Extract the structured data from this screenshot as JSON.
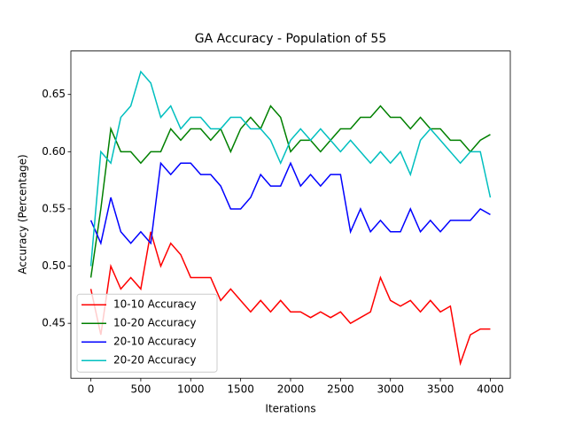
{
  "chart_data": {
    "type": "line",
    "title": "GA Accuracy - Population of 55",
    "xlabel": "Iterations",
    "ylabel": "Accuracy (Percentage)",
    "x": [
      0,
      100,
      200,
      300,
      400,
      500,
      600,
      700,
      800,
      900,
      1000,
      1100,
      1200,
      1300,
      1400,
      1500,
      1600,
      1700,
      1800,
      1900,
      2000,
      2100,
      2200,
      2300,
      2400,
      2500,
      2600,
      2700,
      2800,
      2900,
      3000,
      3100,
      3200,
      3300,
      3400,
      3500,
      3600,
      3700,
      3800,
      3900,
      4000
    ],
    "series": [
      {
        "name": "10-10 Accuracy",
        "color": "#ff0000",
        "values": [
          0.48,
          0.44,
          0.5,
          0.48,
          0.49,
          0.48,
          0.53,
          0.5,
          0.52,
          0.51,
          0.49,
          0.49,
          0.49,
          0.47,
          0.48,
          0.47,
          0.46,
          0.47,
          0.46,
          0.47,
          0.46,
          0.46,
          0.455,
          0.46,
          0.455,
          0.46,
          0.45,
          0.455,
          0.46,
          0.49,
          0.47,
          0.465,
          0.47,
          0.46,
          0.47,
          0.46,
          0.465,
          0.415,
          0.44,
          0.445,
          0.445
        ]
      },
      {
        "name": "10-20 Accuracy",
        "color": "#008000",
        "values": [
          0.49,
          0.55,
          0.62,
          0.6,
          0.6,
          0.59,
          0.6,
          0.6,
          0.62,
          0.61,
          0.62,
          0.62,
          0.61,
          0.62,
          0.6,
          0.62,
          0.63,
          0.62,
          0.64,
          0.63,
          0.6,
          0.61,
          0.61,
          0.6,
          0.61,
          0.62,
          0.62,
          0.63,
          0.63,
          0.64,
          0.63,
          0.63,
          0.62,
          0.63,
          0.62,
          0.62,
          0.61,
          0.61,
          0.6,
          0.61,
          0.615
        ]
      },
      {
        "name": "20-10 Accuracy",
        "color": "#0000ff",
        "values": [
          0.54,
          0.52,
          0.56,
          0.53,
          0.52,
          0.53,
          0.52,
          0.59,
          0.58,
          0.59,
          0.59,
          0.58,
          0.58,
          0.57,
          0.55,
          0.55,
          0.56,
          0.58,
          0.57,
          0.57,
          0.59,
          0.57,
          0.58,
          0.57,
          0.58,
          0.58,
          0.53,
          0.55,
          0.53,
          0.54,
          0.53,
          0.53,
          0.55,
          0.53,
          0.54,
          0.53,
          0.54,
          0.54,
          0.54,
          0.55,
          0.545
        ]
      },
      {
        "name": "20-20 Accuracy",
        "color": "#00bfbf",
        "values": [
          0.5,
          0.6,
          0.59,
          0.63,
          0.64,
          0.67,
          0.66,
          0.63,
          0.64,
          0.62,
          0.63,
          0.63,
          0.62,
          0.62,
          0.63,
          0.63,
          0.62,
          0.62,
          0.61,
          0.59,
          0.61,
          0.62,
          0.61,
          0.62,
          0.61,
          0.6,
          0.61,
          0.6,
          0.59,
          0.6,
          0.59,
          0.6,
          0.58,
          0.61,
          0.62,
          0.61,
          0.6,
          0.59,
          0.6,
          0.6,
          0.56
        ]
      }
    ],
    "xlim": [
      -200,
      4200
    ],
    "xticks": [
      0,
      500,
      1000,
      1500,
      2000,
      2500,
      3000,
      3500,
      4000
    ],
    "ylim": [
      0.402,
      0.688
    ],
    "yticks": [
      0.45,
      {
        "value": 0.5,
        "label": "0.50"
      },
      0.55,
      {
        "value": 0.6,
        "label": "0.60"
      },
      0.65
    ],
    "legend": "lower left"
  }
}
